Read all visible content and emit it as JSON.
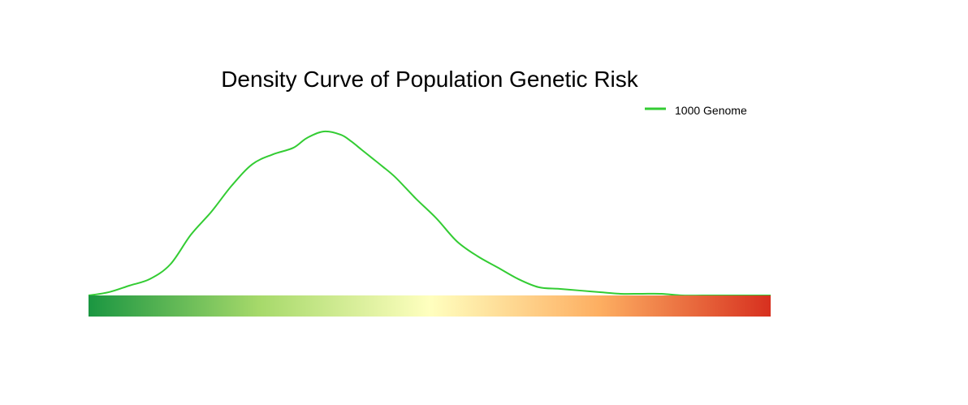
{
  "chart_data": {
    "type": "line",
    "title": "Density Curve of Population Genetic Risk",
    "xlabel": "",
    "ylabel": "",
    "xlim": [
      0,
      1
    ],
    "ylim": [
      0,
      1.03
    ],
    "grid": false,
    "axes_visible": false,
    "legend": {
      "placement": "top-right",
      "entries": [
        {
          "label": "1000 Genome",
          "color": "#33cc33"
        }
      ]
    },
    "series": [
      {
        "name": "1000 Genome",
        "color": "#33cc33",
        "x": [
          0.0,
          0.03,
          0.06,
          0.09,
          0.12,
          0.15,
          0.18,
          0.21,
          0.24,
          0.27,
          0.3,
          0.32,
          0.345,
          0.37,
          0.385,
          0.4,
          0.415,
          0.43,
          0.45,
          0.48,
          0.51,
          0.54,
          0.57,
          0.6,
          0.63,
          0.66,
          0.69,
          0.72,
          0.75,
          0.78,
          0.81,
          0.84,
          0.87,
          0.9,
          0.93,
          0.96,
          1.0
        ],
        "y": [
          0.0,
          0.02,
          0.06,
          0.1,
          0.19,
          0.37,
          0.51,
          0.67,
          0.8,
          0.86,
          0.9,
          0.96,
          1.0,
          0.98,
          0.94,
          0.89,
          0.84,
          0.79,
          0.72,
          0.59,
          0.47,
          0.33,
          0.24,
          0.17,
          0.1,
          0.05,
          0.04,
          0.03,
          0.02,
          0.01,
          0.01,
          0.01,
          0.0,
          0.0,
          0.0,
          0.0,
          0.0
        ]
      }
    ],
    "colorbar": {
      "stops": [
        "#1a9641",
        "#a6d96a",
        "#ffffbf",
        "#fdae61",
        "#d7301f"
      ]
    }
  }
}
